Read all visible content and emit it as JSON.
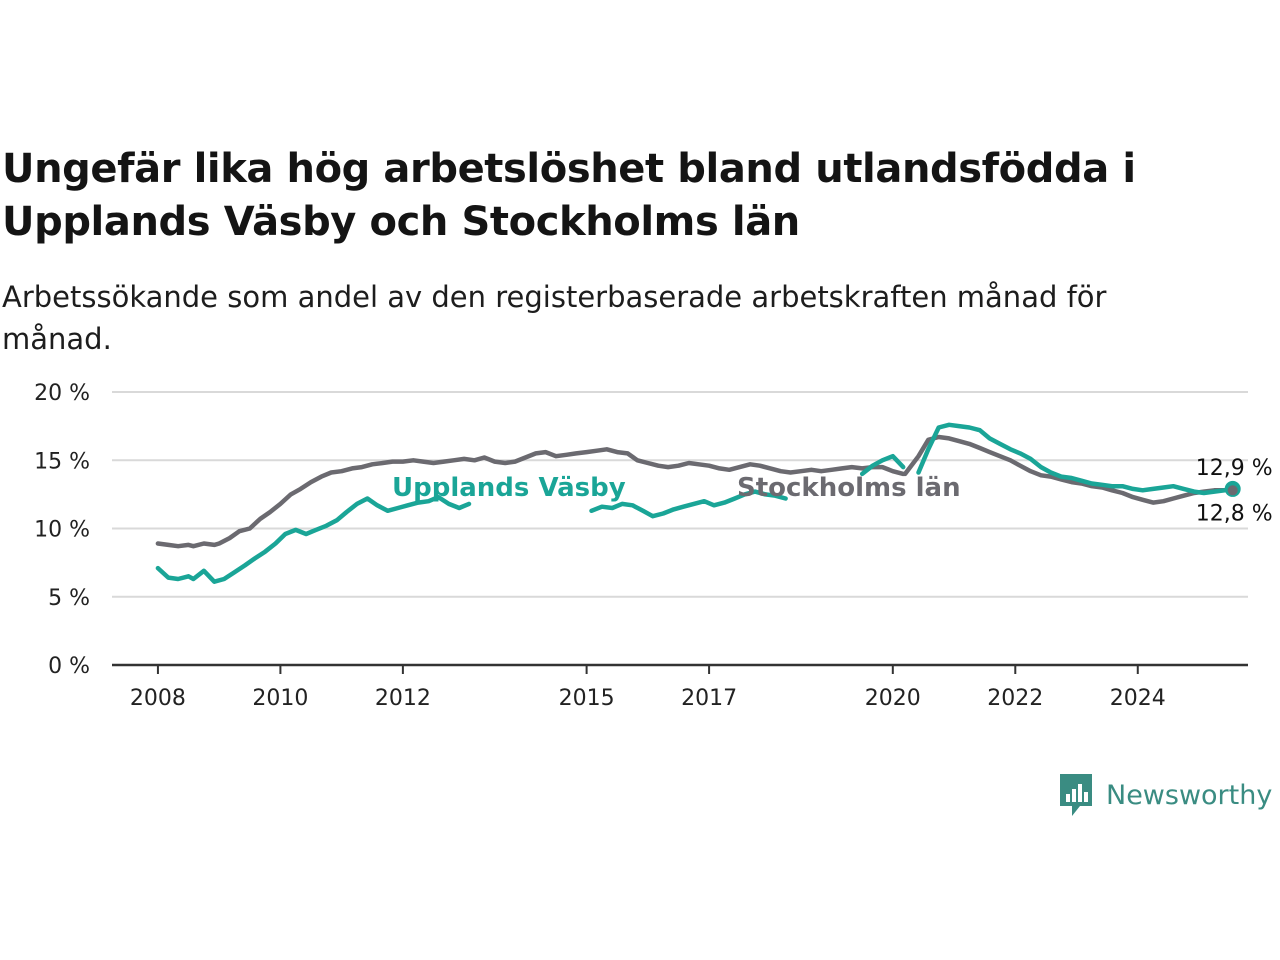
{
  "header": {
    "title": "Ungefär lika hög arbetslöshet bland utlandsfödda i Upplands Väsby och Stockholms län",
    "subtitle": "Arbetssökande som andel av den registerbaserade arbetskraften månad för månad."
  },
  "brand": {
    "name": "Newsworthy",
    "icon": "newsworthy-logo-icon",
    "color": "#3a8c82"
  },
  "chart_data": {
    "type": "line",
    "title": "Ungefär lika hög arbetslöshet bland utlandsfödda i Upplands Väsby och Stockholms län",
    "subtitle": "Arbetssökande som andel av den registerbaserade arbetskraften månad för månad.",
    "xlabel": "",
    "ylabel": "",
    "y_ticks": [
      "0 %",
      "5 %",
      "10 %",
      "15 %",
      "20 %"
    ],
    "y_tick_values": [
      0,
      5,
      10,
      15,
      20
    ],
    "ylim": [
      0,
      20
    ],
    "x_ticks": [
      "2008",
      "2010",
      "2012",
      "2015",
      "2017",
      "2020",
      "2022",
      "2024"
    ],
    "x_tick_values": [
      2008,
      2010,
      2012,
      2015,
      2017,
      2020,
      2022,
      2024
    ],
    "xlim": [
      2007.25,
      2025.8
    ],
    "grid": "horizontal",
    "series": [
      {
        "name": "Stockholms län",
        "color": "#6b6a70",
        "end_label": "12,8 %",
        "label_position": "middle",
        "segments": [
          [
            [
              2008.0,
              8.9
            ],
            [
              2008.17,
              8.8
            ],
            [
              2008.33,
              8.7
            ],
            [
              2008.5,
              8.8
            ],
            [
              2008.58,
              8.7
            ],
            [
              2008.75,
              8.9
            ],
            [
              2008.92,
              8.8
            ],
            [
              2009.0,
              8.9
            ],
            [
              2009.17,
              9.3
            ],
            [
              2009.33,
              9.8
            ],
            [
              2009.5,
              10.0
            ],
            [
              2009.67,
              10.7
            ],
            [
              2009.83,
              11.2
            ],
            [
              2010.0,
              11.8
            ],
            [
              2010.17,
              12.5
            ],
            [
              2010.33,
              12.9
            ],
            [
              2010.5,
              13.4
            ],
            [
              2010.67,
              13.8
            ],
            [
              2010.83,
              14.1
            ],
            [
              2011.0,
              14.2
            ],
            [
              2011.17,
              14.4
            ],
            [
              2011.33,
              14.5
            ],
            [
              2011.5,
              14.7
            ],
            [
              2011.67,
              14.8
            ],
            [
              2011.83,
              14.9
            ],
            [
              2012.0,
              14.9
            ],
            [
              2012.17,
              15.0
            ],
            [
              2012.33,
              14.9
            ],
            [
              2012.5,
              14.8
            ],
            [
              2012.67,
              14.9
            ],
            [
              2012.83,
              15.0
            ],
            [
              2013.0,
              15.1
            ],
            [
              2013.17,
              15.0
            ],
            [
              2013.33,
              15.2
            ],
            [
              2013.5,
              14.9
            ],
            [
              2013.67,
              14.8
            ],
            [
              2013.83,
              14.9
            ],
            [
              2014.0,
              15.2
            ],
            [
              2014.17,
              15.5
            ],
            [
              2014.33,
              15.6
            ],
            [
              2014.5,
              15.3
            ],
            [
              2014.67,
              15.4
            ],
            [
              2014.83,
              15.5
            ],
            [
              2015.0,
              15.6
            ],
            [
              2015.17,
              15.7
            ],
            [
              2015.33,
              15.8
            ],
            [
              2015.5,
              15.6
            ],
            [
              2015.67,
              15.5
            ],
            [
              2015.83,
              15.0
            ],
            [
              2016.0,
              14.8
            ],
            [
              2016.17,
              14.6
            ],
            [
              2016.33,
              14.5
            ],
            [
              2016.5,
              14.6
            ],
            [
              2016.67,
              14.8
            ],
            [
              2016.83,
              14.7
            ],
            [
              2017.0,
              14.6
            ],
            [
              2017.17,
              14.4
            ],
            [
              2017.33,
              14.3
            ],
            [
              2017.5,
              14.5
            ],
            [
              2017.67,
              14.7
            ],
            [
              2017.83,
              14.6
            ],
            [
              2018.0,
              14.4
            ],
            [
              2018.17,
              14.2
            ],
            [
              2018.33,
              14.1
            ],
            [
              2018.5,
              14.2
            ],
            [
              2018.67,
              14.3
            ],
            [
              2018.83,
              14.2
            ],
            [
              2019.0,
              14.3
            ],
            [
              2019.17,
              14.4
            ],
            [
              2019.33,
              14.5
            ],
            [
              2019.5,
              14.4
            ],
            [
              2019.67,
              14.5
            ],
            [
              2019.83,
              14.5
            ],
            [
              2020.0,
              14.2
            ],
            [
              2020.17,
              14.0
            ]
          ],
          [
            [
              2020.2,
              14.0
            ],
            [
              2020.42,
              15.3
            ],
            [
              2020.58,
              16.5
            ],
            [
              2020.75,
              16.7
            ],
            [
              2020.92,
              16.6
            ],
            [
              2021.08,
              16.4
            ],
            [
              2021.25,
              16.2
            ],
            [
              2021.42,
              15.9
            ],
            [
              2021.58,
              15.6
            ],
            [
              2021.75,
              15.3
            ],
            [
              2021.92,
              15.0
            ],
            [
              2022.08,
              14.6
            ],
            [
              2022.25,
              14.2
            ],
            [
              2022.42,
              13.9
            ],
            [
              2022.58,
              13.8
            ],
            [
              2022.75,
              13.6
            ],
            [
              2022.92,
              13.4
            ],
            [
              2023.08,
              13.3
            ],
            [
              2023.25,
              13.1
            ],
            [
              2023.42,
              13.0
            ],
            [
              2023.58,
              12.8
            ],
            [
              2023.75,
              12.6
            ],
            [
              2023.92,
              12.3
            ],
            [
              2024.08,
              12.1
            ],
            [
              2024.25,
              11.9
            ],
            [
              2024.42,
              12.0
            ],
            [
              2024.58,
              12.2
            ],
            [
              2024.75,
              12.4
            ],
            [
              2024.92,
              12.6
            ],
            [
              2025.08,
              12.7
            ],
            [
              2025.25,
              12.8
            ],
            [
              2025.42,
              12.8
            ],
            [
              2025.55,
              12.8
            ]
          ]
        ]
      },
      {
        "name": "Upplands Väsby",
        "color": "#1aa597",
        "end_label": "12,9 %",
        "label_position": "middle",
        "segments": [
          [
            [
              2008.0,
              7.1
            ],
            [
              2008.17,
              6.4
            ],
            [
              2008.33,
              6.3
            ],
            [
              2008.5,
              6.5
            ],
            [
              2008.58,
              6.3
            ],
            [
              2008.75,
              6.9
            ],
            [
              2008.92,
              6.1
            ],
            [
              2009.08,
              6.3
            ],
            [
              2009.25,
              6.8
            ],
            [
              2009.42,
              7.3
            ],
            [
              2009.58,
              7.8
            ],
            [
              2009.75,
              8.3
            ],
            [
              2009.92,
              8.9
            ],
            [
              2010.08,
              9.6
            ],
            [
              2010.25,
              9.9
            ],
            [
              2010.42,
              9.6
            ],
            [
              2010.58,
              9.9
            ],
            [
              2010.75,
              10.2
            ],
            [
              2010.92,
              10.6
            ],
            [
              2011.08,
              11.2
            ],
            [
              2011.25,
              11.8
            ],
            [
              2011.42,
              12.2
            ],
            [
              2011.58,
              11.7
            ],
            [
              2011.75,
              11.3
            ],
            [
              2011.92,
              11.5
            ],
            [
              2012.08,
              11.7
            ],
            [
              2012.25,
              11.9
            ],
            [
              2012.42,
              12.0
            ],
            [
              2012.58,
              12.3
            ],
            [
              2012.75,
              11.8
            ],
            [
              2012.92,
              11.5
            ],
            [
              2013.08,
              11.8
            ]
          ],
          [
            [
              2015.08,
              11.3
            ],
            [
              2015.25,
              11.6
            ],
            [
              2015.42,
              11.5
            ],
            [
              2015.58,
              11.8
            ],
            [
              2015.75,
              11.7
            ],
            [
              2015.92,
              11.3
            ],
            [
              2016.08,
              10.9
            ],
            [
              2016.25,
              11.1
            ],
            [
              2016.42,
              11.4
            ],
            [
              2016.58,
              11.6
            ],
            [
              2016.75,
              11.8
            ],
            [
              2016.92,
              12.0
            ],
            [
              2017.08,
              11.7
            ],
            [
              2017.25,
              11.9
            ],
            [
              2017.42,
              12.2
            ],
            [
              2017.58,
              12.5
            ],
            [
              2017.75,
              12.7
            ],
            [
              2017.92,
              12.5
            ],
            [
              2018.08,
              12.4
            ],
            [
              2018.25,
              12.2
            ]
          ],
          [
            [
              2019.5,
              14.0
            ],
            [
              2019.67,
              14.6
            ],
            [
              2019.83,
              15.0
            ],
            [
              2020.0,
              15.3
            ],
            [
              2020.17,
              14.5
            ]
          ],
          [
            [
              2020.42,
              14.1
            ],
            [
              2020.58,
              15.8
            ],
            [
              2020.75,
              17.4
            ],
            [
              2020.92,
              17.6
            ],
            [
              2021.08,
              17.5
            ],
            [
              2021.25,
              17.4
            ],
            [
              2021.42,
              17.2
            ],
            [
              2021.58,
              16.6
            ],
            [
              2021.75,
              16.2
            ],
            [
              2021.92,
              15.8
            ],
            [
              2022.08,
              15.5
            ],
            [
              2022.25,
              15.1
            ],
            [
              2022.42,
              14.5
            ],
            [
              2022.58,
              14.1
            ],
            [
              2022.75,
              13.8
            ],
            [
              2022.92,
              13.7
            ],
            [
              2023.08,
              13.5
            ],
            [
              2023.25,
              13.3
            ],
            [
              2023.42,
              13.2
            ],
            [
              2023.58,
              13.1
            ],
            [
              2023.75,
              13.1
            ],
            [
              2023.92,
              12.9
            ],
            [
              2024.08,
              12.8
            ],
            [
              2024.25,
              12.9
            ],
            [
              2024.42,
              13.0
            ],
            [
              2024.58,
              13.1
            ],
            [
              2024.75,
              12.9
            ],
            [
              2024.92,
              12.7
            ],
            [
              2025.08,
              12.6
            ],
            [
              2025.25,
              12.7
            ],
            [
              2025.42,
              12.8
            ],
            [
              2025.55,
              12.9
            ]
          ]
        ]
      }
    ]
  }
}
